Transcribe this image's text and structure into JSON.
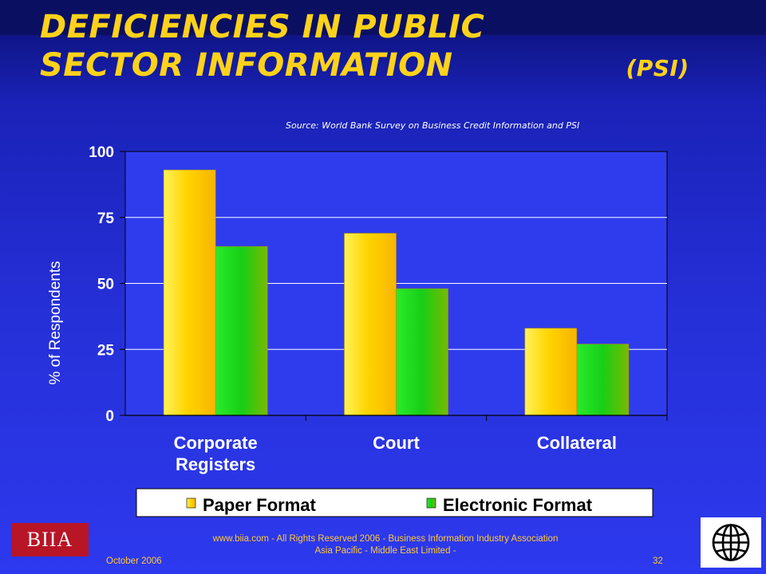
{
  "slide": {
    "title_main": "DEFICIENCIES IN PUBLIC SECTOR INFORMATION",
    "title_suffix": "(PSI)",
    "source": "Source: World Bank Survey on Business Credit Information and PSI"
  },
  "chart_data": {
    "type": "bar",
    "categories": [
      "Corporate Registers",
      "Court",
      "Collateral"
    ],
    "series": [
      {
        "name": "Paper Format",
        "values": [
          93,
          69,
          33
        ],
        "color": "#ffd800"
      },
      {
        "name": "Electronic Format",
        "values": [
          64,
          48,
          27
        ],
        "color": "#22cc22"
      }
    ],
    "ylabel": "% of Respondents",
    "ylim": [
      0,
      100
    ],
    "yticks": [
      0,
      25,
      50,
      75,
      100
    ],
    "grid": true,
    "legend": "bottom",
    "plot_background": "#2f3cee",
    "gridline_color": "#ffffff"
  },
  "footer": {
    "line1": "www.biia.com  - All Rights Reserved 2006 -  Business Information Industry Association",
    "line2": "Asia Pacific - Middle East Limited -",
    "date": "October  2006",
    "page": "32",
    "logo_text": "BIIA"
  },
  "logos": [
    "biia-logo",
    "world-bank-globe-icon"
  ]
}
